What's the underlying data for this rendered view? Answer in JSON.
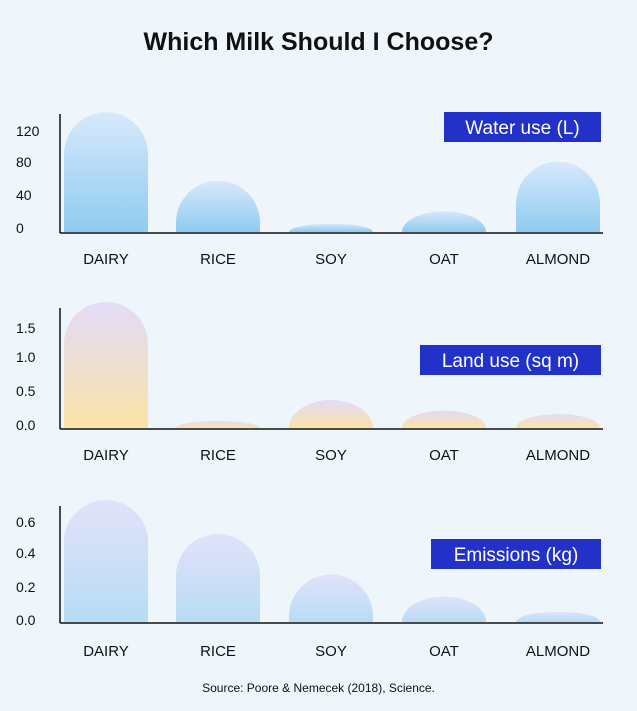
{
  "title": "Which Milk Should I Choose?",
  "source": "Source: Poore & Nemecek (2018), Science.",
  "chart_data": [
    {
      "type": "bar",
      "legend_label": "Water use (L)",
      "legend_color": "#2232c8",
      "categories": [
        "DAIRY",
        "RICE",
        "SOY",
        "OAT",
        "ALMOND"
      ],
      "values": [
        145,
        62,
        10,
        25,
        85
      ],
      "yticks": [
        "120",
        "80",
        "40",
        "0"
      ],
      "ylim": [
        0,
        150
      ],
      "color_top": "#d7e9fb",
      "color_bottom": "#8fcbf0"
    },
    {
      "type": "bar",
      "legend_label": "Land use (sq m)",
      "legend_color": "#2232c8",
      "categories": [
        "DAIRY",
        "RICE",
        "SOY",
        "OAT",
        "ALMOND"
      ],
      "values": [
        1.8,
        0.1,
        0.4,
        0.25,
        0.2
      ],
      "yticks": [
        "1.5",
        "1.0",
        "0.5",
        "0.0"
      ],
      "ylim": [
        0,
        1.8
      ],
      "color_top": "#e3dbf8",
      "color_bottom": "#fbe3a6"
    },
    {
      "type": "bar",
      "legend_label": "Emissions (kg)",
      "legend_color": "#2232c8",
      "categories": [
        "DAIRY",
        "RICE",
        "SOY",
        "OAT",
        "ALMOND"
      ],
      "values": [
        0.72,
        0.52,
        0.28,
        0.15,
        0.06
      ],
      "yticks": [
        "0.6",
        "0.4",
        "0.2",
        "0.0"
      ],
      "ylim": [
        0,
        0.72
      ],
      "color_top": "#e2e2f9",
      "color_bottom": "#b7dcf5"
    }
  ]
}
